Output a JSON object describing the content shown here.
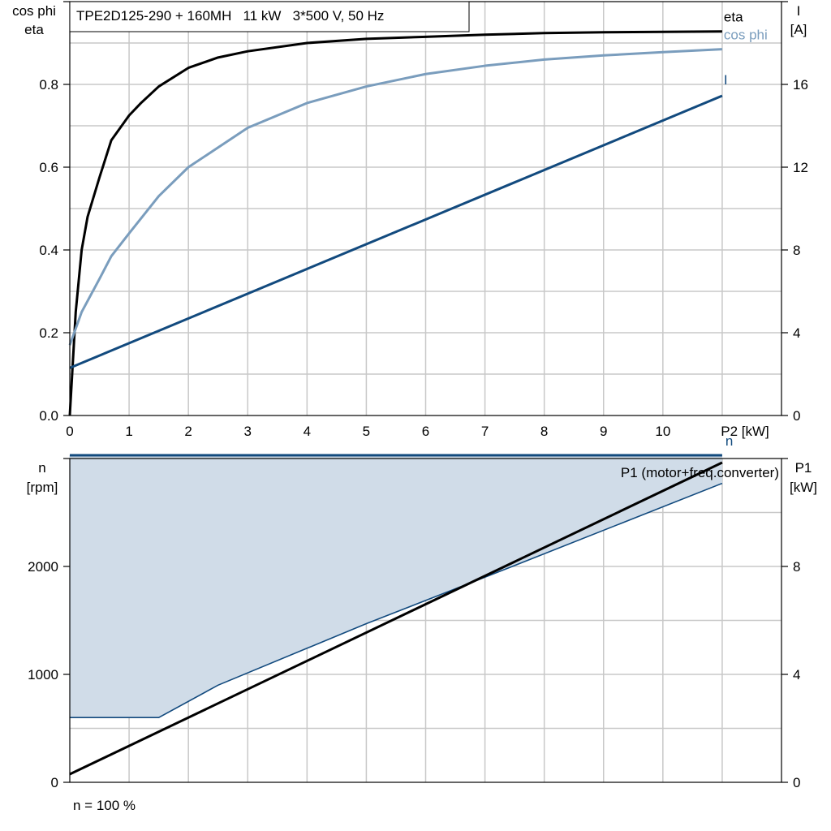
{
  "title": "TPE2D125-290 + 160MH   11 kW   3*500 V, 50 Hz",
  "footer_note": "n = 100 %",
  "colors": {
    "eta": "#000000",
    "cos_phi": "#7a9dbd",
    "current": "#124a7e",
    "speed": "#124a7e",
    "power": "#000000",
    "area_fill": "#d0dce8",
    "grid": "#c8c8c8"
  },
  "chart_data": [
    {
      "type": "line",
      "xlim": [
        0,
        12
      ],
      "x_ticks": [
        0,
        1,
        2,
        3,
        4,
        5,
        6,
        7,
        8,
        9,
        10
      ],
      "xlabel": "P2 [kW]",
      "ylabel_left_line1": "cos phi",
      "ylabel_left_line2": "eta",
      "ylim_left": [
        0,
        1.0
      ],
      "y_ticks_left": [
        0.0,
        0.2,
        0.4,
        0.6,
        0.8
      ],
      "y_tick_labels_left": [
        "0.0",
        "0.2",
        "0.4",
        "0.6",
        "0.8"
      ],
      "ylabel_right_line1": "I",
      "ylabel_right_line2": "[A]",
      "ylim_right": [
        0,
        20
      ],
      "y_ticks_right": [
        0,
        4,
        8,
        12,
        16
      ],
      "y_tick_labels_right": [
        "0",
        "4",
        "8",
        "12",
        "16"
      ],
      "grid": true,
      "series": [
        {
          "name": "eta",
          "axis": "left",
          "color": "#000000",
          "x": [
            0,
            0.1,
            0.2,
            0.3,
            0.5,
            0.7,
            1.0,
            1.2,
            1.5,
            2.0,
            2.5,
            3.0,
            4.0,
            5.0,
            6.0,
            7.0,
            8.0,
            9.0,
            10.0,
            11.0
          ],
          "y": [
            0.0,
            0.25,
            0.4,
            0.48,
            0.575,
            0.665,
            0.725,
            0.755,
            0.795,
            0.84,
            0.865,
            0.88,
            0.9,
            0.91,
            0.915,
            0.92,
            0.924,
            0.926,
            0.927,
            0.928
          ]
        },
        {
          "name": "cos phi",
          "axis": "left",
          "color": "#7a9dbd",
          "x": [
            0,
            0.2,
            0.5,
            0.7,
            1.0,
            1.5,
            2.0,
            3.0,
            4.0,
            5.0,
            6.0,
            7.0,
            8.0,
            9.0,
            10.0,
            11.0
          ],
          "y": [
            0.17,
            0.25,
            0.33,
            0.385,
            0.44,
            0.53,
            0.6,
            0.695,
            0.755,
            0.795,
            0.825,
            0.845,
            0.86,
            0.87,
            0.878,
            0.885
          ]
        },
        {
          "name": "I",
          "axis": "right",
          "color": "#124a7e",
          "x": [
            0,
            11.0
          ],
          "y": [
            2.3,
            15.45
          ]
        }
      ]
    },
    {
      "type": "line",
      "xlim": [
        0,
        12
      ],
      "x_ticks": [
        0,
        1,
        2,
        3,
        4,
        5,
        6,
        7,
        8,
        9,
        10
      ],
      "ylabel_left_line1": "n",
      "ylabel_left_line2": "[rpm]",
      "ylim_left": [
        0,
        3000
      ],
      "y_ticks_left": [
        0,
        1000,
        2000
      ],
      "y_tick_labels_left": [
        "0",
        "1000",
        "2000"
      ],
      "ylabel_right_line1": "P1",
      "ylabel_right_line2": "[kW]",
      "ylim_right": [
        0,
        12
      ],
      "y_ticks_right": [
        0,
        4,
        8
      ],
      "y_tick_labels_right": [
        "0",
        "4",
        "8"
      ],
      "grid": true,
      "series": [
        {
          "name": "n",
          "axis": "left",
          "color": "#124a7e",
          "x": [
            0,
            11.0
          ],
          "y": [
            3030,
            3030
          ]
        },
        {
          "name": "P1 (motor+freq.converter)",
          "axis": "right",
          "color": "#000000",
          "x": [
            0,
            11.0
          ],
          "y": [
            0.3,
            11.85
          ]
        }
      ],
      "area": {
        "x": [
          0,
          1.5,
          2.5,
          5.0,
          7.0,
          11.0
        ],
        "y_lower": [
          600,
          600,
          900,
          1470,
          1900,
          2770
        ],
        "y_upper": 3030
      }
    }
  ]
}
